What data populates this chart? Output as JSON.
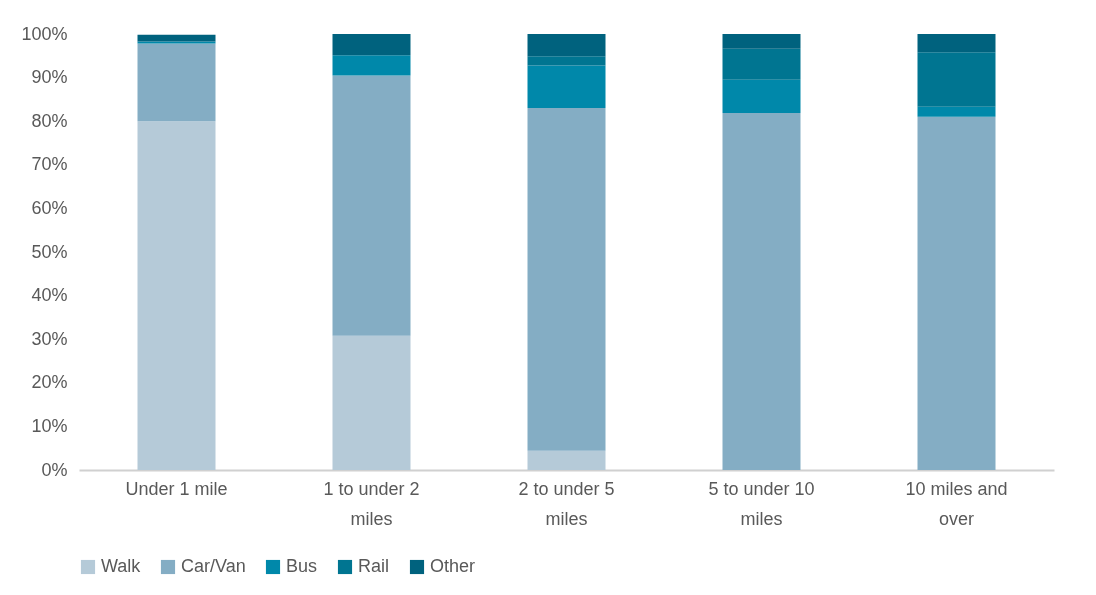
{
  "chart_data": {
    "type": "bar",
    "stacked": true,
    "categories": [
      "Under 1 mile",
      "1 to under 2 miles",
      "2 to under 5 miles",
      "5 to under 10 miles",
      "10 miles and over"
    ],
    "series": [
      {
        "name": "Walk",
        "color": "#b5cad8",
        "values": [
          80,
          30.8,
          4.4,
          0,
          0
        ]
      },
      {
        "name": "Car/Van",
        "color": "#84adc4",
        "values": [
          17.8,
          59.7,
          78.6,
          81.9,
          81
        ]
      },
      {
        "name": "Bus",
        "color": "#0088aa",
        "values": [
          0.5,
          4.6,
          9.8,
          7.6,
          2.3
        ]
      },
      {
        "name": "Rail",
        "color": "#007591",
        "values": [
          null,
          0,
          2.1,
          7.1,
          12.5
        ]
      },
      {
        "name": "Other",
        "color": "#00627e",
        "values": [
          1.5,
          4.9,
          5.1,
          3.4,
          4.2
        ]
      }
    ],
    "ylim": [
      0,
      100
    ],
    "yticks": [
      {
        "value": 0,
        "label": "0%"
      },
      {
        "value": 10,
        "label": "10%"
      },
      {
        "value": 20,
        "label": "20%"
      },
      {
        "value": 30,
        "label": "30%"
      },
      {
        "value": 40,
        "label": "40%"
      },
      {
        "value": 50,
        "label": "50%"
      },
      {
        "value": 60,
        "label": "60%"
      },
      {
        "value": 70,
        "label": "70%"
      },
      {
        "value": 80,
        "label": "80%"
      },
      {
        "value": 90,
        "label": "90%"
      },
      {
        "value": 100,
        "label": "100%"
      }
    ],
    "grid": false,
    "legend": "bottom"
  }
}
